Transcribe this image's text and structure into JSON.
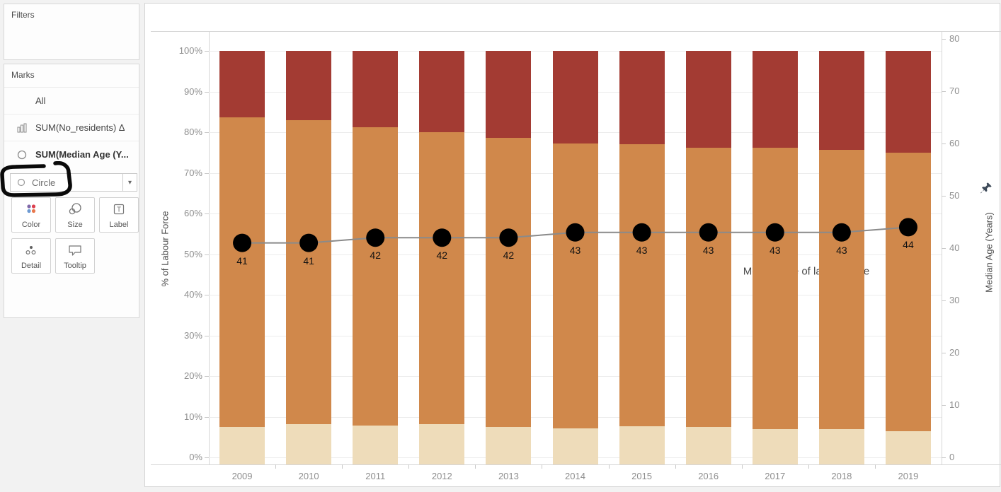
{
  "sidebar": {
    "filters_title": "Filters",
    "marks_title": "Marks",
    "rows": [
      {
        "icon": "bar-chart-icon",
        "label": "All"
      },
      {
        "icon": "bar-chart-icon",
        "label": "SUM(No_residents) Δ"
      },
      {
        "icon": "circle-icon",
        "label": "SUM(Median Age  (Y..."
      }
    ],
    "mark_type_dropdown": {
      "value": "Circle"
    },
    "mark_buttons": [
      "Color",
      "Size",
      "Label",
      "Detail",
      "Tooltip"
    ]
  },
  "chart_data": {
    "type": "combo: 100% stacked bar + circle line",
    "categories": [
      "2009",
      "2010",
      "2011",
      "2012",
      "2013",
      "2014",
      "2015",
      "2016",
      "2017",
      "2018",
      "2019"
    ],
    "series": [
      {
        "name": "segment-bottom",
        "color": "#EEDCBA",
        "values": [
          9.0,
          9.7,
          9.4,
          9.7,
          9.0,
          8.8,
          9.3,
          9.0,
          8.6,
          8.5,
          8.0
        ]
      },
      {
        "name": "segment-middle",
        "color": "#D0884B",
        "values": [
          75.0,
          73.6,
          72.1,
          70.6,
          70.0,
          68.8,
          68.2,
          67.6,
          68.0,
          67.5,
          67.3
        ]
      },
      {
        "name": "segment-top",
        "color": "#A33B33",
        "values": [
          16.0,
          16.7,
          18.5,
          19.7,
          21.0,
          22.4,
          22.5,
          23.4,
          23.4,
          24.0,
          24.7
        ]
      }
    ],
    "line": {
      "name": "Median age of labour force",
      "axis": "right",
      "marker_color": "#000000",
      "connector_color": "#8a8a8a",
      "values": [
        41,
        41,
        42,
        42,
        42,
        43,
        43,
        43,
        43,
        43,
        44
      ]
    },
    "left_axis": {
      "title": "% of Labour Force",
      "range": [
        0,
        100
      ],
      "ticks": [
        "100%",
        "90%",
        "80%",
        "70%",
        "60%",
        "50%",
        "40%",
        "30%",
        "20%",
        "10%",
        "0%"
      ],
      "grid": true
    },
    "right_axis": {
      "title": "Median Age  (Years)",
      "range": [
        0,
        80
      ],
      "ticks": [
        "80",
        "70",
        "60",
        "50",
        "40",
        "30",
        "20",
        "10",
        "0"
      ],
      "pinned": true
    },
    "annotation": "Median age of labour force"
  }
}
